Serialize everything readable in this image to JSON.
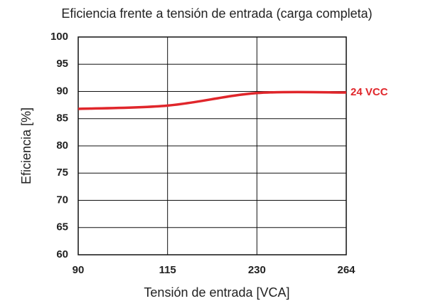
{
  "chart_data": {
    "type": "line",
    "title": "Eficiencia frente a tensión de entrada (carga completa)",
    "xlabel": "Tensión de entrada [VCA]",
    "ylabel": "Eficiencia [%]",
    "categories": [
      "90",
      "115",
      "230",
      "264"
    ],
    "series": [
      {
        "name": "24 VCC",
        "color": "#e0262b",
        "values": [
          86.8,
          87.4,
          89.7,
          89.8
        ]
      }
    ],
    "ylim": [
      60,
      100
    ],
    "yticks": [
      60,
      65,
      70,
      75,
      80,
      85,
      90,
      95,
      100
    ],
    "grid": true
  }
}
